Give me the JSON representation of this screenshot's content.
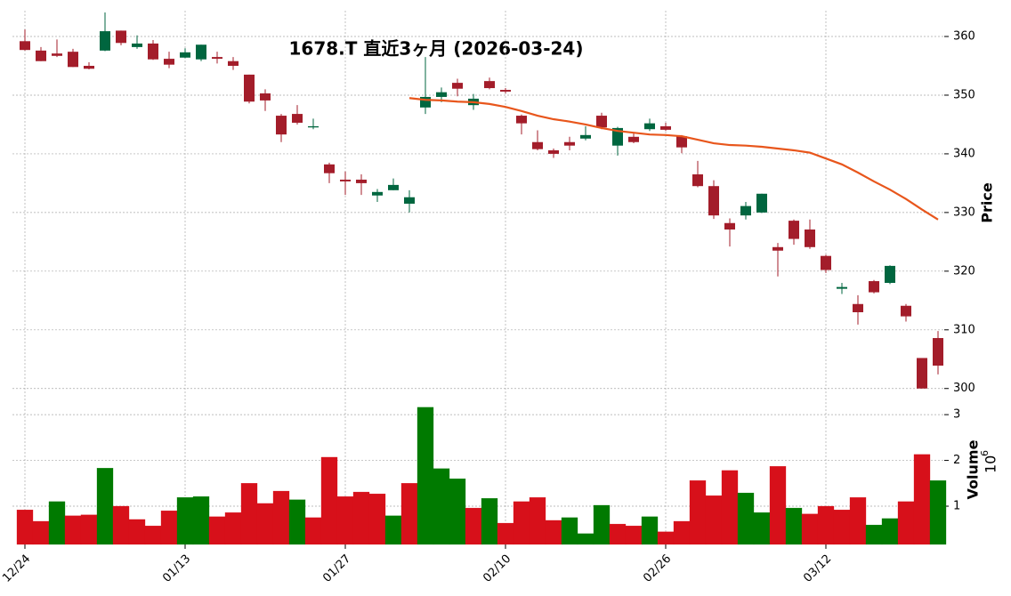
{
  "chart_data": {
    "type": "candlestick",
    "title": "1678.T 直近3ヶ月 (2026-03-24)",
    "categories": [
      "12/24",
      null,
      null,
      null,
      null,
      null,
      null,
      null,
      null,
      null,
      "01/13",
      null,
      null,
      null,
      null,
      null,
      null,
      null,
      null,
      null,
      "01/27",
      null,
      null,
      null,
      null,
      null,
      null,
      null,
      null,
      null,
      "02/10",
      null,
      null,
      null,
      null,
      null,
      null,
      null,
      null,
      null,
      "02/26",
      null,
      null,
      null,
      null,
      null,
      null,
      null,
      null,
      null,
      "03/12",
      null,
      null,
      null,
      null,
      null,
      null,
      null
    ],
    "open": [
      359.2,
      357.6,
      357.1,
      357.4,
      355,
      357.6,
      361,
      358.2,
      358.8,
      356.2,
      356.4,
      356.1,
      356.5,
      355.8,
      353.5,
      350.3,
      346.5,
      346.8,
      344.5,
      338.2,
      335.6,
      335.6,
      332.9,
      333.8,
      331.5,
      347.9,
      349.7,
      352.1,
      348.3,
      352.4,
      350.9,
      346.5,
      342,
      340.6,
      342,
      342.6,
      346.5,
      341.4,
      342.9,
      344.2,
      344.7,
      343,
      336.5,
      334.5,
      328.2,
      329.5,
      330,
      324.1,
      328.6,
      327.1,
      322.6,
      317,
      314.4,
      318.3,
      318,
      314.1,
      305.2,
      308.6
    ],
    "high": [
      361.2,
      358.2,
      359.5,
      357.9,
      355.6,
      364.1,
      361,
      360.2,
      359.4,
      357.4,
      358,
      358.6,
      357.4,
      356.5,
      353.5,
      351,
      346.8,
      348.3,
      346,
      338.5,
      337,
      336.5,
      334,
      335.8,
      333.8,
      356.5,
      351.3,
      352.8,
      350.2,
      353,
      351.2,
      346.7,
      344,
      340.9,
      342.9,
      344.7,
      347,
      344.6,
      343.5,
      346,
      345.3,
      343.2,
      338.8,
      335.5,
      329,
      331.8,
      333.2,
      324.8,
      328.8,
      328.8,
      322.8,
      318,
      315.9,
      318.5,
      321,
      314.4,
      305.2,
      309.8
    ],
    "low": [
      357.6,
      355.8,
      356.5,
      354.8,
      354.4,
      357.5,
      358.5,
      357.9,
      356,
      354.6,
      356.3,
      355.8,
      355.4,
      354.3,
      348.6,
      347.3,
      342,
      345,
      344.2,
      335,
      333,
      333,
      331.8,
      333.8,
      330,
      346.8,
      348.8,
      349.8,
      347.5,
      351,
      350.3,
      343.3,
      340.6,
      339.3,
      340.6,
      342.3,
      344.2,
      339.7,
      341.8,
      343.9,
      343.9,
      340.1,
      334.3,
      328.9,
      324.2,
      328.8,
      329.9,
      319.1,
      324.5,
      323.8,
      319.7,
      316.1,
      310.9,
      316.2,
      317.8,
      311.4,
      300,
      302.4
    ],
    "close": [
      357.7,
      355.8,
      356.7,
      354.8,
      354.5,
      360.9,
      358.9,
      358.8,
      356.1,
      355.2,
      357.3,
      358.6,
      356.2,
      355,
      348.9,
      349.1,
      343.3,
      345.3,
      344.7,
      336.7,
      335.3,
      335,
      333.5,
      334.7,
      332.6,
      349.7,
      350.5,
      351.1,
      349.4,
      351.2,
      350.6,
      345.2,
      340.8,
      340,
      341.4,
      343.2,
      344.5,
      344.4,
      342,
      345.2,
      344.1,
      341.1,
      334.5,
      329.5,
      327.1,
      331.1,
      333.2,
      323.5,
      325.5,
      324.1,
      320.2,
      317.3,
      313,
      316.4,
      320.9,
      312.3,
      300,
      303.9
    ],
    "up_color": "#00663f",
    "down_color": "#a31d2a",
    "ylim": [
      298.9,
      364.4
    ],
    "yticks": [
      300,
      310,
      320,
      330,
      340,
      350,
      360
    ],
    "ylabel": "Price",
    "grid": true,
    "ma": {
      "color": "#e8561c",
      "values": [
        null,
        null,
        null,
        null,
        null,
        null,
        null,
        null,
        null,
        null,
        null,
        null,
        null,
        null,
        null,
        null,
        null,
        null,
        null,
        null,
        null,
        null,
        null,
        null,
        349.5,
        349.2,
        349.1,
        348.9,
        348.8,
        348.5,
        348.0,
        347.3,
        346.5,
        345.9,
        345.5,
        345.0,
        344.4,
        343.9,
        343.6,
        343.3,
        343.2,
        343.0,
        342.4,
        341.8,
        341.5,
        341.4,
        341.2,
        340.9,
        340.6,
        340.2,
        339.2,
        338.2,
        336.8,
        335.3,
        333.9,
        332.3,
        330.5,
        328.8
      ]
    },
    "volume": {
      "label": "Volume",
      "multiplier_base": "10",
      "multiplier_exponent": "6",
      "ylim": [
        0.165,
        3.43
      ],
      "yticks": [
        1,
        2,
        3
      ],
      "values": [
        0.92,
        0.67,
        1.1,
        0.79,
        0.81,
        1.83,
        1.0,
        0.71,
        0.57,
        0.9,
        1.19,
        1.21,
        0.77,
        0.86,
        1.5,
        1.06,
        1.33,
        1.14,
        0.75,
        2.07,
        1.21,
        1.31,
        1.27,
        0.79,
        1.5,
        3.16,
        1.82,
        1.6,
        0.96,
        1.17,
        0.63,
        1.1,
        1.19,
        0.69,
        0.75,
        0.4,
        1.02,
        0.61,
        0.57,
        0.77,
        0.44,
        0.67,
        1.56,
        1.23,
        1.78,
        1.29,
        0.86,
        1.87,
        0.96,
        0.83,
        1.0,
        0.92,
        1.19,
        0.59,
        0.73,
        1.1,
        2.13,
        1.56
      ],
      "colors": [
        "#d7101a",
        "#d7101a",
        "#007a00",
        "#d7101a",
        "#d7101a",
        "#007a00",
        "#d7101a",
        "#d7101a",
        "#d7101a",
        "#d7101a",
        "#007a00",
        "#007a00",
        "#d7101a",
        "#d7101a",
        "#d7101a",
        "#d7101a",
        "#d7101a",
        "#007a00",
        "#d7101a",
        "#d7101a",
        "#d7101a",
        "#d7101a",
        "#d7101a",
        "#007a00",
        "#d7101a",
        "#007a00",
        "#007a00",
        "#007a00",
        "#d7101a",
        "#007a00",
        "#d7101a",
        "#d7101a",
        "#d7101a",
        "#d7101a",
        "#007a00",
        "#007a00",
        "#007a00",
        "#d7101a",
        "#d7101a",
        "#007a00",
        "#d7101a",
        "#d7101a",
        "#d7101a",
        "#d7101a",
        "#d7101a",
        "#007a00",
        "#007a00",
        "#d7101a",
        "#007a00",
        "#d7101a",
        "#d7101a",
        "#d7101a",
        "#d7101a",
        "#007a00",
        "#007a00",
        "#d7101a",
        "#d7101a",
        "#007a00"
      ]
    }
  }
}
